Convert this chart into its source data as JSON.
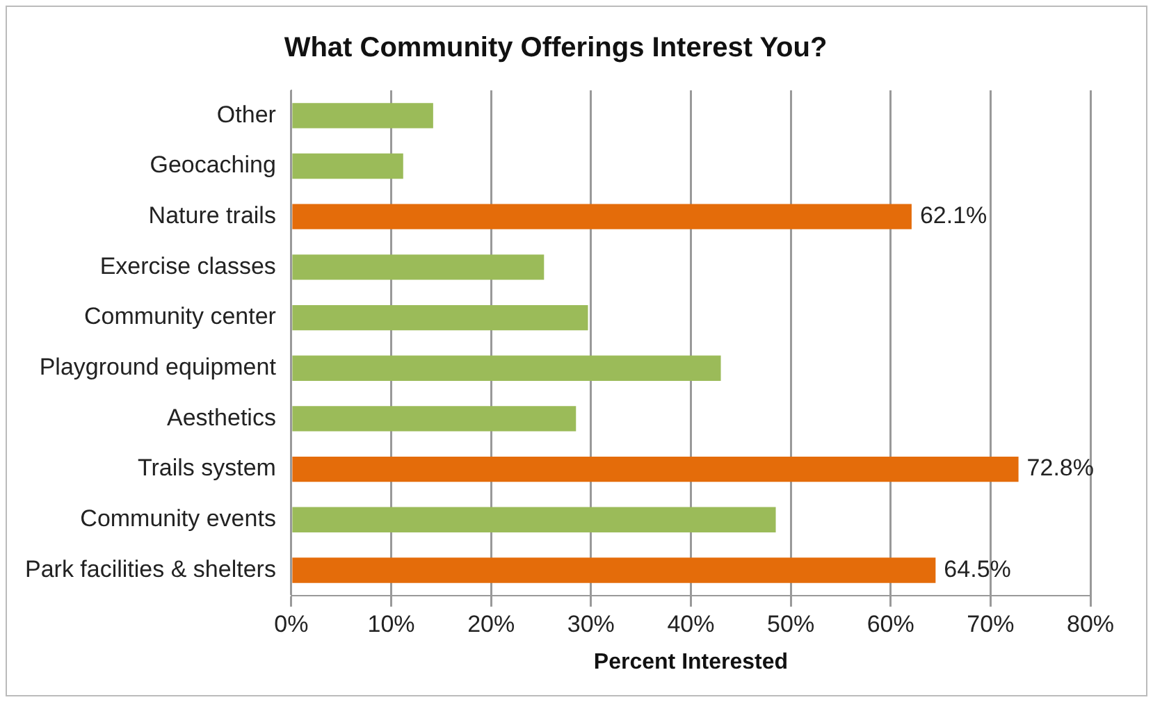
{
  "chart_data": {
    "type": "bar",
    "orientation": "horizontal",
    "title": "What Community Offerings Interest You?",
    "xlabel": "Percent Interested",
    "categories": [
      "Other",
      "Geocaching",
      "Nature trails",
      "Exercise classes",
      "Community center",
      "Playground equipment",
      "Aesthetics",
      "Trails system",
      "Community events",
      "Park facilities & shelters"
    ],
    "values": [
      14.2,
      11.2,
      62.1,
      25.3,
      29.7,
      43.0,
      28.5,
      72.8,
      48.5,
      64.5
    ],
    "colors": [
      "#9bbb59",
      "#9bbb59",
      "#e46c0a",
      "#9bbb59",
      "#9bbb59",
      "#9bbb59",
      "#9bbb59",
      "#e46c0a",
      "#9bbb59",
      "#e46c0a"
    ],
    "value_labels": [
      null,
      null,
      "62.1%",
      null,
      null,
      null,
      null,
      "72.8%",
      null,
      "64.5%"
    ],
    "xlim": [
      0,
      80
    ],
    "xticks": [
      {
        "value": 0,
        "label": "0%"
      },
      {
        "value": 10,
        "label": "10%"
      },
      {
        "value": 20,
        "label": "20%"
      },
      {
        "value": 30,
        "label": "30%"
      },
      {
        "value": 40,
        "label": "40%"
      },
      {
        "value": 50,
        "label": "50%"
      },
      {
        "value": 60,
        "label": "60%"
      },
      {
        "value": 70,
        "label": "70%"
      },
      {
        "value": 80,
        "label": "80%"
      }
    ],
    "grid": "x",
    "legend": false
  }
}
